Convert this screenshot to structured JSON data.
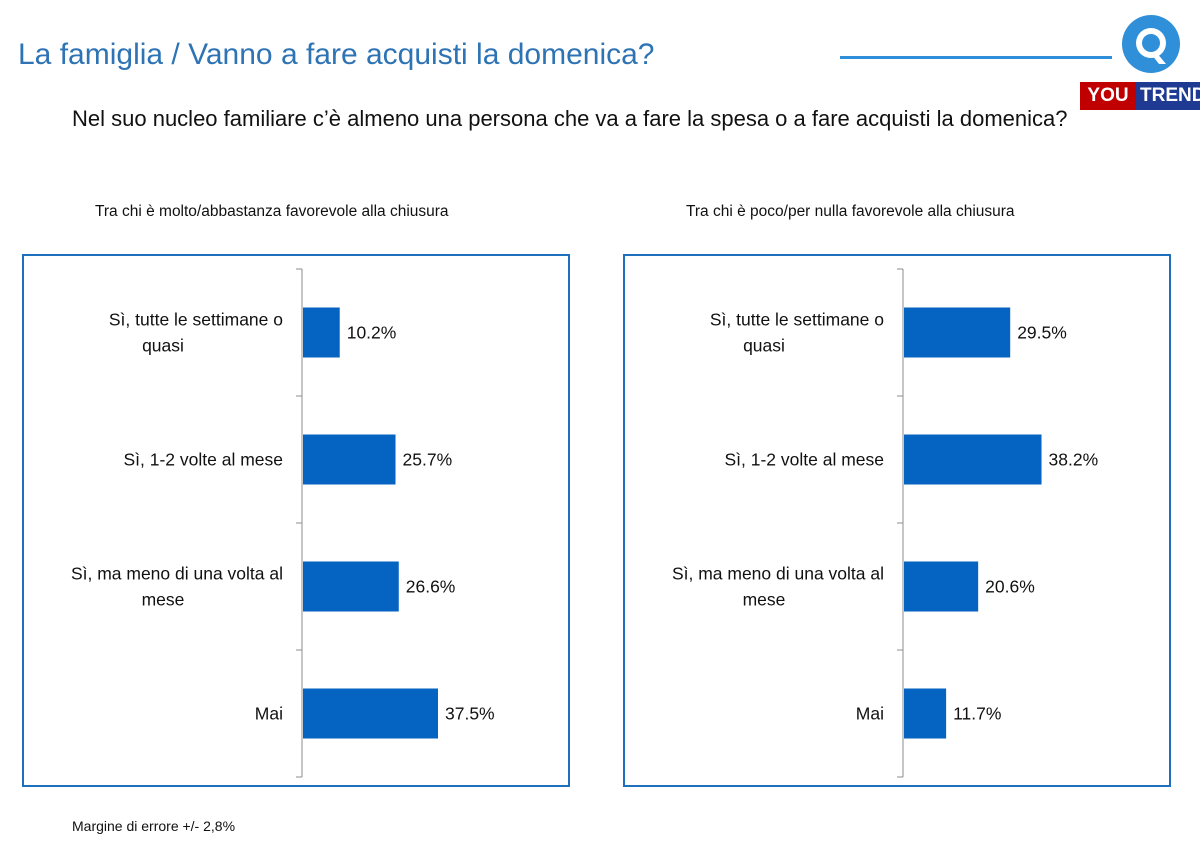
{
  "header": {
    "title": "La famiglia / Vanno a fare acquisti la domenica?",
    "logo_you": "YOU",
    "logo_trend": "TREND"
  },
  "question": "Nel suo nucleo familiare c’è almeno una persona che va a fare la spesa o a fare acquisti la domenica?",
  "footnote": "Margine di errore +/- 2,8%",
  "colors": {
    "accent": "#2e74b5",
    "bar": "#0563c1",
    "panel_border": "#1f6fbf",
    "logo_red": "#c00000",
    "logo_blue": "#1f3a93"
  },
  "chart_data": [
    {
      "type": "bar",
      "orientation": "horizontal",
      "title": "Tra chi è molto/abbastanza favorevole alla chiusura",
      "categories": [
        "Sì, tutte le settimane o quasi",
        "Sì, 1-2 volte al mese",
        "Sì, ma meno di una volta al mese",
        "Mai"
      ],
      "values": [
        10.2,
        25.7,
        26.6,
        37.5
      ],
      "value_labels": [
        "10.2%",
        "25.7%",
        "26.6%",
        "37.5%"
      ],
      "xlim": [
        0,
        100
      ],
      "grid": false,
      "legend": false
    },
    {
      "type": "bar",
      "orientation": "horizontal",
      "title": "Tra chi è poco/per nulla favorevole alla chiusura",
      "categories": [
        "Sì, tutte le settimane o quasi",
        "Sì, 1-2 volte al mese",
        "Sì, ma meno di una volta al mese",
        "Mai"
      ],
      "values": [
        29.5,
        38.2,
        20.6,
        11.7
      ],
      "value_labels": [
        "29.5%",
        "38.2%",
        "20.6%",
        "11.7%"
      ],
      "xlim": [
        0,
        100
      ],
      "grid": false,
      "legend": false
    }
  ]
}
